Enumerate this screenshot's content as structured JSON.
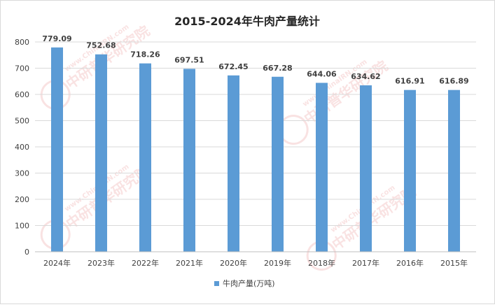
{
  "chart_data": {
    "type": "bar",
    "title": "2015-2024年牛肉产量统计",
    "categories": [
      "2024年",
      "2023年",
      "2022年",
      "2021年",
      "2020年",
      "2019年",
      "2018年",
      "2017年",
      "2016年",
      "2015年"
    ],
    "series": [
      {
        "name": "牛肉产量(万吨)",
        "values": [
          779.09,
          752.68,
          718.26,
          697.51,
          672.45,
          667.28,
          644.06,
          634.62,
          616.91,
          616.89
        ],
        "value_labels": [
          "779.09",
          "752.68",
          "718.26",
          "697.51",
          "672.45",
          "667.28",
          "644.06",
          "634.62",
          "616.91",
          "616.89"
        ],
        "color": "#5b9bd5"
      }
    ],
    "y_ticks": [
      "0",
      "100",
      "200",
      "300",
      "400",
      "500",
      "600",
      "700",
      "800"
    ],
    "ylim": [
      0,
      800
    ],
    "grid": true,
    "legend_position": "bottom",
    "xlabel": "",
    "ylabel": ""
  },
  "watermark": {
    "brand": "中研普华研究院",
    "site": "www.ChinaIRN.com",
    "logo": "CIRN"
  }
}
